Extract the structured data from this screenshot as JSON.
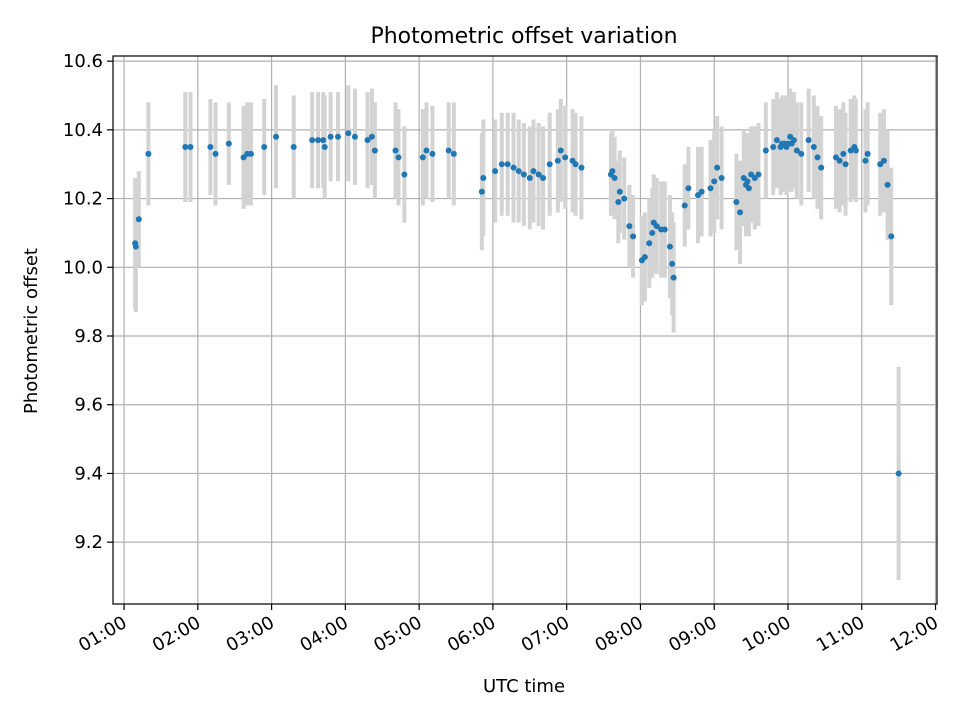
{
  "chart_data": {
    "type": "scatter",
    "title": "Photometric offset variation",
    "xlabel": "UTC time",
    "ylabel": "Photometric offset",
    "xlim": [
      0.85,
      12.02
    ],
    "ylim": [
      9.02,
      10.615
    ],
    "x_ticks": [
      {
        "value": 1,
        "label": "01:00"
      },
      {
        "value": 2,
        "label": "02:00"
      },
      {
        "value": 3,
        "label": "03:00"
      },
      {
        "value": 4,
        "label": "04:00"
      },
      {
        "value": 5,
        "label": "05:00"
      },
      {
        "value": 6,
        "label": "06:00"
      },
      {
        "value": 7,
        "label": "07:00"
      },
      {
        "value": 8,
        "label": "08:00"
      },
      {
        "value": 9,
        "label": "09:00"
      },
      {
        "value": 10,
        "label": "10:00"
      },
      {
        "value": 11,
        "label": "11:00"
      },
      {
        "value": 12,
        "label": "12:00"
      }
    ],
    "y_ticks": [
      {
        "value": 9.2,
        "label": "9.2"
      },
      {
        "value": 9.4,
        "label": "9.4"
      },
      {
        "value": 9.6,
        "label": "9.6"
      },
      {
        "value": 9.8,
        "label": "9.8"
      },
      {
        "value": 10.0,
        "label": "10.0"
      },
      {
        "value": 10.2,
        "label": "10.2"
      },
      {
        "value": 10.4,
        "label": "10.4"
      },
      {
        "value": 10.6,
        "label": "10.6"
      }
    ],
    "grid": true,
    "colors": {
      "point": "#1f77b4",
      "errorbar": "#d3d3d3",
      "grid": "#b0b0b0",
      "axes": "#000000"
    },
    "series": [
      {
        "name": "Photometric offset",
        "x": [
          1.15,
          1.16,
          1.2,
          1.33,
          1.83,
          1.9,
          2.17,
          2.24,
          2.42,
          2.62,
          2.67,
          2.72,
          2.9,
          3.06,
          3.3,
          3.55,
          3.63,
          3.7,
          3.72,
          3.8,
          3.9,
          4.04,
          4.13,
          4.3,
          4.36,
          4.4,
          4.68,
          4.72,
          4.8,
          5.05,
          5.1,
          5.18,
          5.4,
          5.47,
          5.85,
          5.87,
          6.03,
          6.12,
          6.2,
          6.28,
          6.35,
          6.42,
          6.5,
          6.55,
          6.62,
          6.68,
          6.77,
          6.88,
          6.92,
          6.98,
          7.08,
          7.12,
          7.2,
          7.6,
          7.62,
          7.65,
          7.7,
          7.72,
          7.78,
          7.85,
          7.9,
          8.02,
          8.06,
          8.12,
          8.16,
          8.18,
          8.22,
          8.28,
          8.33,
          8.4,
          8.43,
          8.45,
          8.6,
          8.65,
          8.78,
          8.83,
          8.95,
          9.0,
          9.04,
          9.1,
          9.3,
          9.35,
          9.4,
          9.43,
          9.45,
          9.47,
          9.5,
          9.55,
          9.6,
          9.7,
          9.8,
          9.85,
          9.9,
          9.92,
          9.95,
          9.98,
          10.0,
          10.03,
          10.05,
          10.08,
          10.12,
          10.18,
          10.28,
          10.35,
          10.4,
          10.45,
          10.65,
          10.7,
          10.75,
          10.78,
          10.85,
          10.9,
          10.92,
          11.05,
          11.08,
          11.25,
          11.3,
          11.35,
          11.4,
          11.5
        ],
        "y": [
          10.07,
          10.06,
          10.14,
          10.33,
          10.35,
          10.35,
          10.35,
          10.33,
          10.36,
          10.32,
          10.33,
          10.33,
          10.35,
          10.38,
          10.35,
          10.37,
          10.37,
          10.37,
          10.35,
          10.38,
          10.38,
          10.39,
          10.38,
          10.37,
          10.38,
          10.34,
          10.34,
          10.32,
          10.27,
          10.32,
          10.34,
          10.33,
          10.34,
          10.33,
          10.22,
          10.26,
          10.28,
          10.3,
          10.3,
          10.29,
          10.28,
          10.27,
          10.26,
          10.28,
          10.27,
          10.26,
          10.3,
          10.31,
          10.34,
          10.32,
          10.31,
          10.3,
          10.29,
          10.27,
          10.28,
          10.26,
          10.19,
          10.22,
          10.2,
          10.12,
          10.09,
          10.02,
          10.03,
          10.07,
          10.1,
          10.13,
          10.12,
          10.11,
          10.11,
          10.06,
          10.01,
          9.97,
          10.18,
          10.23,
          10.21,
          10.22,
          10.23,
          10.25,
          10.29,
          10.26,
          10.19,
          10.16,
          10.26,
          10.24,
          10.25,
          10.23,
          10.27,
          10.26,
          10.27,
          10.34,
          10.35,
          10.37,
          10.35,
          10.36,
          10.36,
          10.35,
          10.36,
          10.38,
          10.36,
          10.37,
          10.34,
          10.33,
          10.37,
          10.35,
          10.32,
          10.29,
          10.32,
          10.31,
          10.33,
          10.3,
          10.34,
          10.35,
          10.34,
          10.31,
          10.33,
          10.3,
          10.31,
          10.24,
          10.09,
          9.4
        ],
        "yerr": [
          0.19,
          0.19,
          0.14,
          0.15,
          0.16,
          0.16,
          0.14,
          0.15,
          0.12,
          0.15,
          0.15,
          0.15,
          0.14,
          0.15,
          0.15,
          0.14,
          0.14,
          0.14,
          0.15,
          0.13,
          0.13,
          0.14,
          0.14,
          0.14,
          0.14,
          0.14,
          0.14,
          0.14,
          0.14,
          0.14,
          0.14,
          0.14,
          0.14,
          0.15,
          0.17,
          0.17,
          0.15,
          0.15,
          0.15,
          0.16,
          0.15,
          0.15,
          0.15,
          0.15,
          0.15,
          0.15,
          0.15,
          0.15,
          0.15,
          0.15,
          0.15,
          0.15,
          0.15,
          0.12,
          0.12,
          0.12,
          0.12,
          0.12,
          0.12,
          0.12,
          0.12,
          0.13,
          0.13,
          0.13,
          0.13,
          0.14,
          0.14,
          0.14,
          0.14,
          0.15,
          0.15,
          0.16,
          0.12,
          0.12,
          0.14,
          0.13,
          0.14,
          0.15,
          0.15,
          0.15,
          0.14,
          0.15,
          0.14,
          0.15,
          0.14,
          0.14,
          0.14,
          0.15,
          0.15,
          0.14,
          0.14,
          0.14,
          0.14,
          0.14,
          0.14,
          0.14,
          0.14,
          0.14,
          0.14,
          0.14,
          0.14,
          0.15,
          0.15,
          0.15,
          0.15,
          0.15,
          0.15,
          0.15,
          0.15,
          0.15,
          0.15,
          0.15,
          0.15,
          0.15,
          0.15,
          0.15,
          0.15,
          0.16,
          0.2,
          0.31
        ]
      }
    ]
  }
}
